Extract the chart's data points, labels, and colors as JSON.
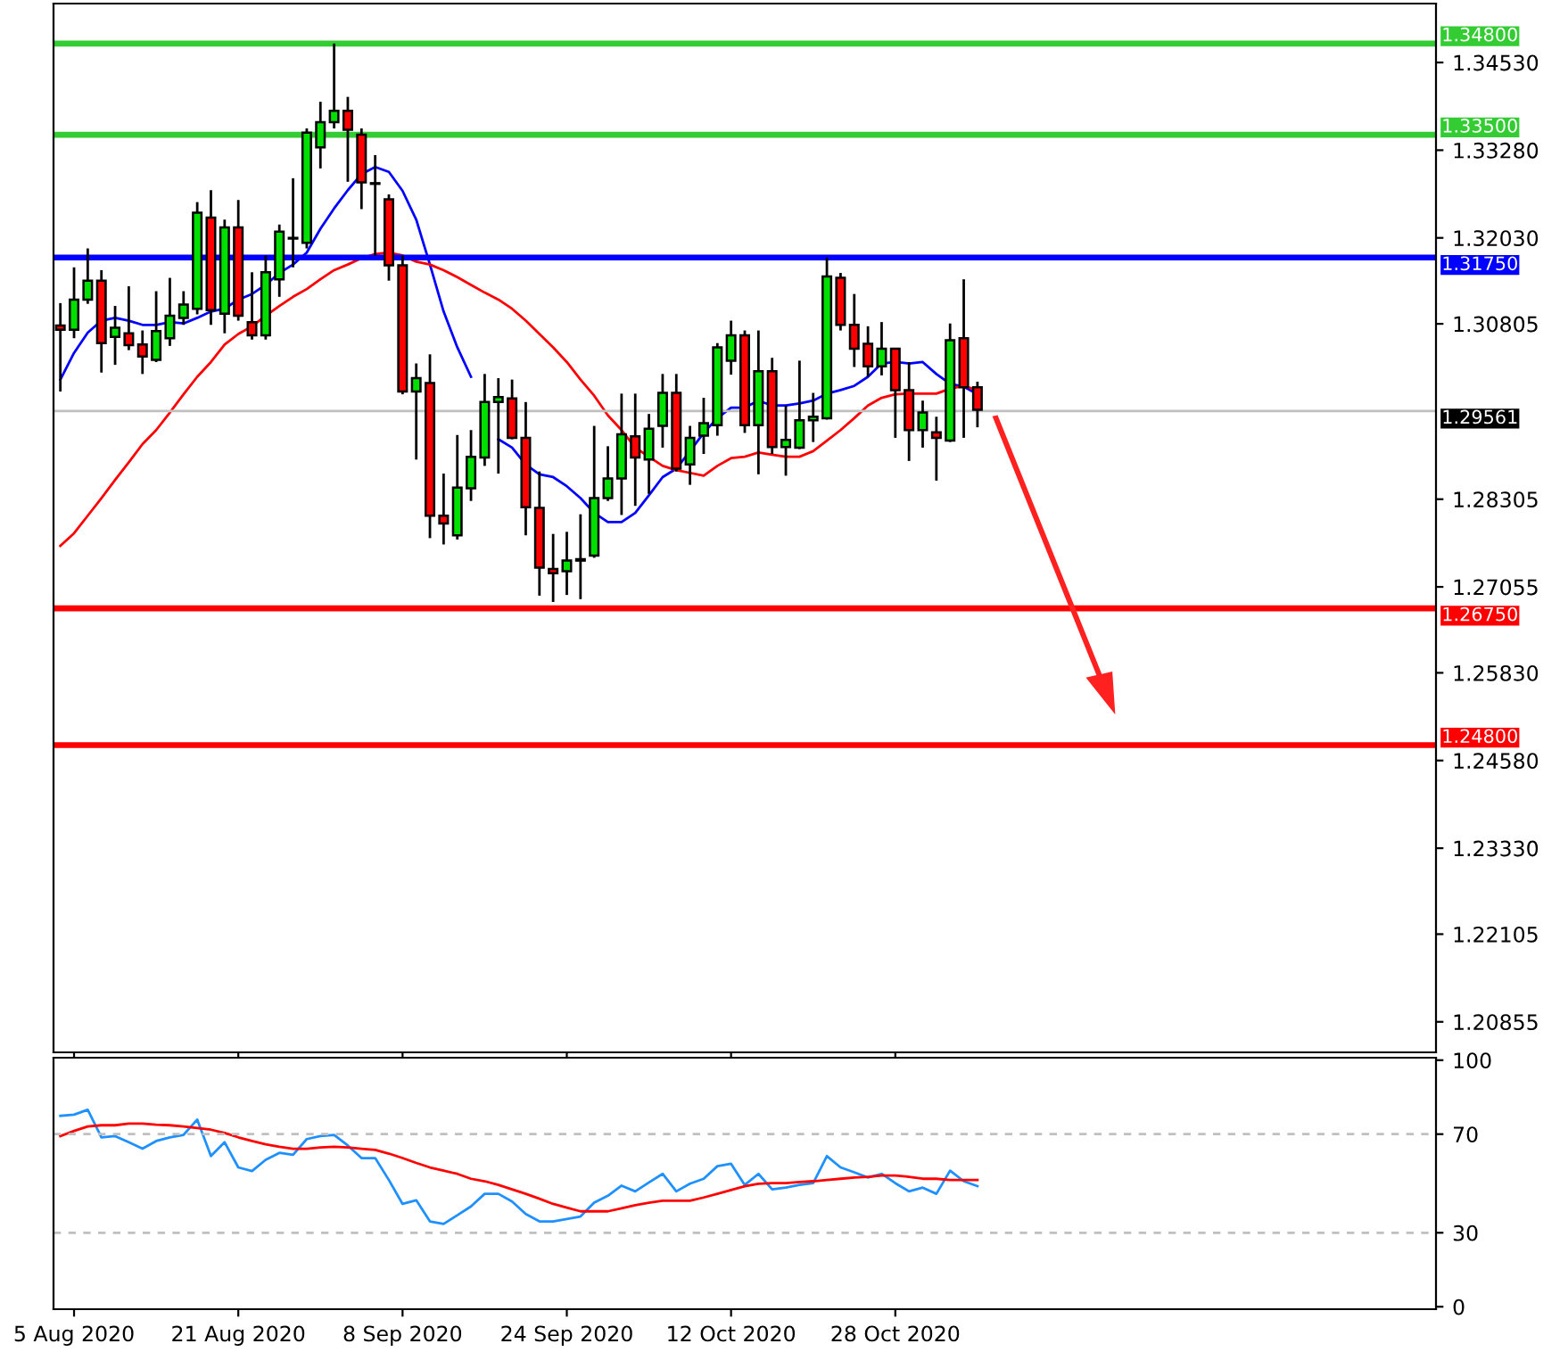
{
  "chart_data": [
    {
      "type": "candlestick",
      "categories": [
        null,
        null,
        null,
        null,
        null,
        null,
        null,
        null,
        null,
        null,
        null,
        null,
        null,
        null,
        null,
        null,
        null,
        null,
        null,
        null,
        null,
        null,
        null,
        null,
        null,
        null,
        null,
        null,
        null,
        null,
        null,
        null,
        null,
        null,
        null,
        null,
        null,
        null,
        null,
        null,
        null,
        null,
        null,
        null,
        null,
        null,
        null,
        null,
        null,
        null,
        null,
        null,
        null,
        null,
        null,
        null,
        null,
        null,
        null,
        null,
        null,
        null,
        null,
        null,
        null,
        null,
        null,
        null,
        null,
        null,
        null,
        null,
        null,
        null,
        null,
        null,
        null,
        null,
        null,
        null,
        null,
        null,
        null,
        null,
        null,
        null,
        null,
        null,
        null,
        null,
        null,
        null,
        null,
        null,
        null,
        null,
        null,
        null,
        null,
        null,
        null
      ],
      "ohlc": [
        [
          1.3078,
          1.311,
          1.2984,
          1.3072
        ],
        [
          1.3072,
          1.3161,
          1.306,
          1.3115
        ],
        [
          1.3115,
          1.3188,
          1.3109,
          1.3142
        ],
        [
          1.3142,
          1.3157,
          1.3011,
          1.3053
        ],
        [
          1.3062,
          1.3106,
          1.3022,
          1.3075
        ],
        [
          1.3067,
          1.3134,
          1.3043,
          1.305
        ],
        [
          1.3051,
          1.3071,
          1.3009,
          1.3034
        ],
        [
          1.3029,
          1.3127,
          1.3026,
          1.307
        ],
        [
          1.306,
          1.3146,
          1.3049,
          1.3092
        ],
        [
          1.3089,
          1.3127,
          1.3079,
          1.3108
        ],
        [
          1.3102,
          1.3254,
          1.3094,
          1.3239
        ],
        [
          1.3232,
          1.3271,
          1.3079,
          1.31
        ],
        [
          1.3095,
          1.3229,
          1.3067,
          1.3218
        ],
        [
          1.3218,
          1.3257,
          1.3085,
          1.3092
        ],
        [
          1.3083,
          1.3154,
          1.3058,
          1.3064
        ],
        [
          1.3064,
          1.3178,
          1.3058,
          1.3154
        ],
        [
          1.3144,
          1.3222,
          1.3119,
          1.3212
        ],
        [
          1.3202,
          1.3288,
          1.3161,
          1.3203
        ],
        [
          1.3196,
          1.3359,
          1.3188,
          1.3353
        ],
        [
          1.3332,
          1.3397,
          1.3302,
          1.3368
        ],
        [
          1.3368,
          1.348,
          1.3359,
          1.3384
        ],
        [
          1.3384,
          1.3404,
          1.3283,
          1.3357
        ],
        [
          1.335,
          1.3359,
          1.3244,
          1.3282
        ],
        [
          1.3281,
          1.3321,
          1.3178,
          1.328
        ],
        [
          1.3258,
          1.3265,
          1.3142,
          1.3164
        ],
        [
          1.3164,
          1.3178,
          1.298,
          1.2984
        ],
        [
          1.2984,
          1.3024,
          1.2887,
          1.3003
        ],
        [
          1.2996,
          1.3037,
          1.2775,
          1.2807
        ],
        [
          1.2807,
          1.2867,
          1.2766,
          1.2796
        ],
        [
          1.2779,
          1.2922,
          1.2773,
          1.2847
        ],
        [
          1.2846,
          1.2929,
          1.2828,
          1.2891
        ],
        [
          1.289,
          1.3009,
          1.2878,
          1.2969
        ],
        [
          1.2969,
          1.3003,
          1.2867,
          1.2976
        ],
        [
          1.2974,
          1.3001,
          1.2916,
          1.2918
        ],
        [
          1.2918,
          1.2969,
          1.2779,
          1.2819
        ],
        [
          1.2818,
          1.287,
          1.2693,
          1.2733
        ],
        [
          1.2731,
          1.2781,
          1.2684,
          1.2725
        ],
        [
          1.2728,
          1.2784,
          1.2694,
          1.2743
        ],
        [
          1.2743,
          1.2809,
          1.2688,
          1.2745
        ],
        [
          1.275,
          1.2935,
          1.2747,
          1.2832
        ],
        [
          1.2832,
          1.2906,
          1.2828,
          1.286
        ],
        [
          1.286,
          1.2981,
          1.2808,
          1.2923
        ],
        [
          1.292,
          1.2981,
          1.2821,
          1.289
        ],
        [
          1.2887,
          1.2952,
          1.2838,
          1.2931
        ],
        [
          1.2935,
          1.3009,
          1.2904,
          1.2982
        ],
        [
          1.2982,
          1.3009,
          1.287,
          1.2874
        ],
        [
          1.288,
          1.2935,
          1.2851,
          1.2918
        ],
        [
          1.2921,
          1.2975,
          1.2895,
          1.2939
        ],
        [
          1.2936,
          1.3053,
          1.2921,
          1.3047
        ],
        [
          1.3028,
          1.3085,
          1.3008,
          1.3064
        ],
        [
          1.3064,
          1.3071,
          1.2925,
          1.2936
        ],
        [
          1.2936,
          1.3071,
          1.2866,
          1.3013
        ],
        [
          1.3013,
          1.3032,
          1.2895,
          1.2905
        ],
        [
          1.2905,
          1.2964,
          1.2864,
          1.2915
        ],
        [
          1.2904,
          1.3028,
          1.2902,
          1.2943
        ],
        [
          1.2943,
          1.2982,
          1.2912,
          1.2948
        ],
        [
          1.2946,
          1.3175,
          1.2944,
          1.3148
        ],
        [
          1.3146,
          1.3153,
          1.3071,
          1.3079
        ],
        [
          1.3079,
          1.3123,
          1.3019,
          1.3045
        ],
        [
          1.3052,
          1.3077,
          1.3005,
          1.302
        ],
        [
          1.302,
          1.3083,
          1.3007,
          1.3045
        ],
        [
          1.3045,
          1.3046,
          1.2918,
          1.2986
        ],
        [
          1.2986,
          1.3026,
          1.2885,
          1.2929
        ],
        [
          1.2929,
          1.2971,
          1.2904,
          1.2954
        ],
        [
          1.2926,
          1.2948,
          1.2857,
          1.2918
        ],
        [
          1.2914,
          1.3081,
          1.2912,
          1.3057
        ],
        [
          1.306,
          1.3144,
          1.2918,
          1.299
        ],
        [
          1.299,
          1.2998,
          1.2933,
          1.2958
        ],
        null,
        null,
        null,
        null,
        null,
        null,
        null,
        null,
        null,
        null,
        null,
        null,
        null,
        null,
        null,
        null,
        null,
        null,
        null,
        null,
        null,
        null,
        null,
        null,
        null,
        null,
        null,
        null,
        null,
        null,
        null,
        null,
        null
      ],
      "colors": [
        "#ff0000",
        "#00e000",
        "#00e000",
        "#ff0000",
        "#00e000",
        "#ff0000",
        "#ff0000",
        "#00e000",
        "#00e000",
        "#00e000",
        "#00e000",
        "#ff0000",
        "#00e000",
        "#ff0000",
        "#ff0000",
        "#00e000",
        "#00e000",
        "#00e000",
        "#00e000",
        "#00e000",
        "#00e000",
        "#ff0000",
        "#ff0000",
        "#ff0000",
        "#ff0000",
        "#ff0000",
        "#00e000",
        "#ff0000",
        "#ff0000",
        "#00e000",
        "#00e000",
        "#00e000",
        "#00e000",
        "#ff0000",
        "#ff0000",
        "#ff0000",
        "#ff0000",
        "#00e000",
        "#00e000",
        "#00e000",
        "#00e000",
        "#00e000",
        "#ff0000",
        "#00e000",
        "#00e000",
        "#ff0000",
        "#00e000",
        "#00e000",
        "#00e000",
        "#00e000",
        "#ff0000",
        "#00e000",
        "#ff0000",
        "#00e000",
        "#00e000",
        "#00e000",
        "#00e000",
        "#ff0000",
        "#ff0000",
        "#ff0000",
        "#00e000",
        "#ff0000",
        "#ff0000",
        "#00e000",
        "#ff0000",
        "#00e000",
        "#ff0000",
        "#ff0000",
        null,
        null,
        null,
        null,
        null,
        null,
        null,
        null,
        null,
        null,
        null,
        null,
        null,
        null,
        null,
        null,
        null,
        null,
        null,
        null,
        null,
        null,
        null,
        null,
        null,
        null,
        null,
        null,
        null,
        null,
        null,
        null,
        null
      ],
      "series": [
        {
          "type": "line",
          "color": "#0000ff",
          "values": [
            1.3001,
            1.3039,
            1.3068,
            1.3085,
            1.3089,
            1.3085,
            1.3079,
            1.3079,
            1.3083,
            1.3081,
            1.3089,
            1.3098,
            1.3102,
            1.3115,
            1.3123,
            1.3136,
            1.3153,
            1.3165,
            1.3182,
            1.3216,
            1.3245,
            1.3271,
            1.3294,
            1.3304,
            1.3297,
            1.327,
            1.3229,
            1.3165,
            1.3098,
            1.3047,
            1.3005,
            null,
            1.2916,
            1.2904,
            1.288,
            1.2866,
            1.2862,
            1.2849,
            1.2832,
            1.2811,
            1.2798,
            1.2798,
            1.2811,
            1.2836,
            1.2862,
            1.2874,
            1.2899,
            1.2925,
            1.2946,
            1.2961,
            1.2961,
            1.2971,
            1.2964,
            1.2964,
            1.2967,
            1.2971,
            1.2981,
            1.2986,
            1.2992,
            1.3005,
            1.3024,
            1.3026,
            1.3024,
            1.3026,
            1.3009,
            1.2995,
            1.2991,
            1.298,
            null,
            null,
            null,
            null,
            null,
            null,
            null,
            null,
            null,
            null,
            null,
            null,
            null,
            null,
            null,
            null,
            null,
            null,
            null,
            null,
            null,
            null,
            null,
            null,
            null,
            null,
            null,
            null,
            null,
            null,
            null,
            null,
            null
          ]
        },
        {
          "type": "line",
          "color": "#ff0000",
          "values": [
            1.2764,
            1.2782,
            1.2807,
            1.2832,
            1.2858,
            1.2883,
            1.2909,
            1.2929,
            1.2954,
            1.298,
            1.3005,
            1.3026,
            1.3051,
            1.3066,
            1.3077,
            1.3092,
            1.3106,
            1.3119,
            1.313,
            1.3144,
            1.3157,
            1.3165,
            1.3174,
            1.318,
            1.3182,
            1.3178,
            1.3169,
            1.3165,
            1.3157,
            1.3147,
            1.3136,
            1.3125,
            1.3115,
            1.3102,
            1.3085,
            1.3066,
            1.3047,
            1.3026,
            1.3001,
            1.2978,
            1.295,
            1.2929,
            1.2904,
            1.2891,
            1.2878,
            1.2872,
            1.2868,
            1.2864,
            1.2878,
            1.2889,
            1.2891,
            1.2897,
            1.2894,
            1.2891,
            1.2891,
            1.2899,
            1.2914,
            1.2929,
            1.2946,
            1.2964,
            1.2975,
            1.298,
            1.2981,
            1.2981,
            1.2981,
            1.2988,
            1.2992,
            1.2986,
            null,
            null,
            null,
            null,
            null,
            null,
            null,
            null,
            null,
            null,
            null,
            null,
            null,
            null,
            null,
            null,
            null,
            null,
            null,
            null,
            null,
            null,
            null,
            null,
            null,
            null,
            null,
            null,
            null,
            null,
            null,
            null,
            null
          ]
        }
      ],
      "ylim": [
        1.2042,
        1.3537
      ],
      "yticks": [
        {
          "value": 1.3453,
          "label": "1.34530"
        },
        {
          "value": 1.3328,
          "label": "1.33280"
        },
        {
          "value": 1.3203,
          "label": "1.32030"
        },
        1.30805,
        1.28305,
        1.27055,
        {
          "value": 1.2583,
          "label": "1.25830"
        },
        {
          "value": 1.2458,
          "label": "1.24580"
        },
        {
          "value": 1.2333,
          "label": "1.23330"
        },
        1.22105,
        1.20855
      ],
      "ref_lines": [
        {
          "axis": "y",
          "value": 1.348,
          "label": "1.34800",
          "color": "#33cc33"
        },
        {
          "axis": "y",
          "value": 1.335,
          "label": "1.33500",
          "color": "#33cc33"
        },
        {
          "axis": "y",
          "value": 1.3175,
          "label": "1.31750",
          "color": "#0000ff"
        },
        {
          "axis": "y",
          "value": 1.29561,
          "label": "1.29561",
          "color": "#c0c0c0"
        },
        {
          "axis": "y",
          "value": 1.2675,
          "label": "1.26750",
          "color": "#ff0000"
        },
        {
          "axis": "y",
          "value": 1.248,
          "label": "1.24800",
          "color": "#ff0000"
        }
      ],
      "tick_labels": "y"
    },
    {
      "type": "line",
      "categories": [
        null,
        "5 Aug 2020",
        null,
        null,
        null,
        null,
        null,
        null,
        null,
        null,
        null,
        null,
        null,
        "21 Aug 2020",
        null,
        null,
        null,
        null,
        null,
        null,
        null,
        null,
        null,
        null,
        null,
        "8 Sep 2020",
        null,
        null,
        null,
        null,
        null,
        null,
        null,
        null,
        null,
        null,
        null,
        "24 Sep 2020",
        null,
        null,
        null,
        null,
        null,
        null,
        null,
        null,
        null,
        null,
        null,
        "12 Oct 2020",
        null,
        null,
        null,
        null,
        null,
        null,
        null,
        null,
        null,
        null,
        null,
        "28 Oct 2020",
        null,
        null,
        null,
        null,
        null,
        null,
        null,
        null,
        null,
        null,
        null,
        null,
        null,
        null,
        null,
        null,
        null,
        null,
        null,
        null,
        null,
        null,
        null,
        null,
        null,
        null,
        null,
        null,
        null,
        null,
        null,
        null,
        null,
        null,
        null,
        null,
        null,
        null,
        null
      ],
      "series": [
        {
          "color": "#1e90ff",
          "values": [
            77.4,
            77.9,
            79.9,
            68.7,
            69.2,
            66.7,
            64.1,
            67.2,
            68.7,
            69.7,
            75.9,
            61.1,
            66.7,
            56.5,
            55.0,
            59.6,
            62.4,
            61.6,
            68.0,
            69.2,
            69.7,
            65.4,
            60.3,
            60.3,
            51.4,
            41.7,
            43.2,
            34.6,
            33.6,
            37.1,
            40.7,
            45.8,
            45.8,
            42.7,
            37.6,
            34.6,
            34.6,
            35.6,
            36.6,
            42.2,
            45.0,
            49.1,
            46.8,
            50.4,
            53.9,
            46.8,
            49.9,
            51.9,
            57.0,
            58.0,
            49.4,
            53.9,
            47.6,
            48.3,
            49.4,
            50.1,
            61.1,
            56.5,
            54.5,
            52.4,
            53.9,
            50.1,
            46.8,
            48.3,
            45.8,
            55.2,
            50.9,
            48.9,
            null,
            null,
            null,
            null,
            null,
            null,
            null,
            null,
            null,
            null,
            null,
            null,
            null,
            null,
            null,
            null,
            null,
            null,
            null,
            null,
            null,
            null,
            null,
            null,
            null,
            null,
            null,
            null,
            null,
            null,
            null,
            null,
            null
          ]
        },
        {
          "color": "#ff0000",
          "values": [
            69.2,
            71.3,
            73.1,
            73.6,
            73.6,
            74.3,
            74.3,
            73.8,
            73.6,
            73.1,
            72.5,
            71.8,
            70.5,
            68.7,
            67.2,
            65.9,
            64.9,
            64.1,
            64.1,
            64.6,
            64.9,
            64.6,
            64.1,
            63.6,
            62.1,
            60.3,
            58.3,
            56.5,
            55.2,
            53.9,
            51.9,
            50.9,
            49.4,
            47.6,
            45.8,
            43.8,
            41.7,
            40.2,
            38.7,
            38.7,
            38.7,
            39.9,
            41.2,
            42.2,
            43.0,
            43.0,
            43.0,
            44.3,
            45.8,
            47.3,
            48.9,
            49.9,
            50.1,
            50.1,
            50.6,
            50.9,
            51.4,
            51.9,
            52.4,
            52.7,
            53.2,
            53.2,
            52.7,
            51.9,
            51.9,
            51.4,
            51.4,
            51.4,
            null,
            null,
            null,
            null,
            null,
            null,
            null,
            null,
            null,
            null,
            null,
            null,
            null,
            null,
            null,
            null,
            null,
            null,
            null,
            null,
            null,
            null,
            null,
            null,
            null,
            null,
            null,
            null,
            null,
            null,
            null,
            null,
            null
          ]
        }
      ],
      "ylim": [
        -1,
        101
      ],
      "yticks": [
        100,
        70,
        30,
        0
      ],
      "ref_lines": [
        {
          "axis": "y",
          "value": 70,
          "color": "#c0c0c0",
          "line_style": "dashed"
        },
        {
          "axis": "y",
          "value": 30,
          "color": "#c0c0c0",
          "line_style": "dashed"
        }
      ]
    }
  ]
}
